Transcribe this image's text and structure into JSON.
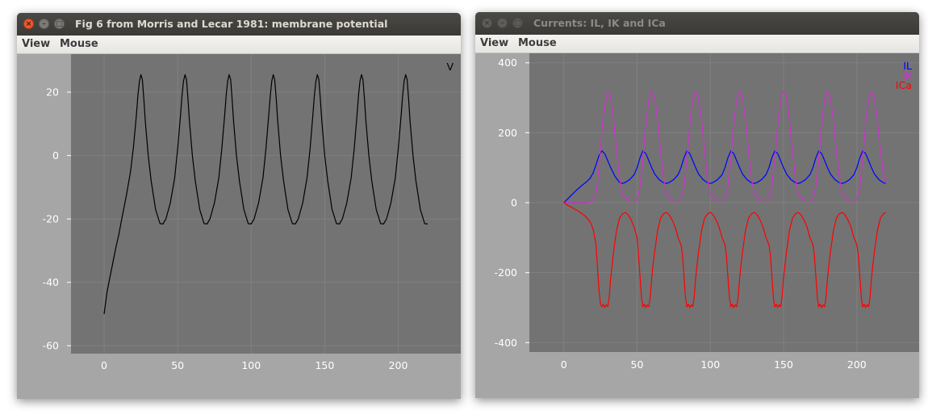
{
  "windows": [
    {
      "title": "Fig 6 from Morris and Lecar 1981: membrane potential",
      "menus": [
        "View",
        "Mouse"
      ]
    },
    {
      "title": "Currents: IL, IK and ICa",
      "menus": [
        "View",
        "Mouse"
      ]
    }
  ],
  "colors": {
    "plot_bg": "#737373",
    "outer_bg": "#a6a6a6",
    "grid": "#808080",
    "V": "#000000",
    "IL": "#0000ff",
    "IK": "#cc33cc",
    "ICa": "#ff0000"
  },
  "chart_data": [
    {
      "type": "line",
      "title": "",
      "xlabel": "",
      "ylabel": "",
      "xlim": [
        -22.5,
        242.5
      ],
      "ylim": [
        -62.5,
        32.0
      ],
      "xticks": [
        "0",
        "50",
        "100",
        "150",
        "200"
      ],
      "yticks": [
        "20",
        "0",
        "-20",
        "-40",
        "-60"
      ],
      "grid": true,
      "legend_position": "top-right",
      "series": [
        {
          "name": "V",
          "color": "#000000",
          "x": [
            0,
            2,
            5,
            8,
            10,
            12,
            15,
            18,
            20,
            22,
            23,
            24,
            25,
            26,
            27,
            28,
            30,
            32,
            35,
            38,
            40,
            42,
            45,
            48,
            50,
            52,
            53,
            54,
            55,
            56,
            57,
            58,
            60,
            62,
            65,
            68,
            70,
            72,
            75,
            78,
            80,
            82,
            83,
            84,
            85,
            86,
            87,
            88,
            90,
            92,
            95,
            98,
            100,
            102,
            105,
            108,
            110,
            112,
            113,
            114,
            115,
            116,
            117,
            118,
            120,
            122,
            125,
            128,
            130,
            132,
            135,
            138,
            140,
            142,
            143,
            144,
            145,
            146,
            147,
            148,
            150,
            152,
            155,
            158,
            160,
            162,
            165,
            168,
            170,
            172,
            173,
            174,
            175,
            176,
            177,
            178,
            180,
            182,
            185,
            188,
            190,
            192,
            195,
            198,
            200,
            202,
            203,
            204,
            205,
            206,
            207,
            208,
            210,
            212,
            215,
            218,
            220
          ],
          "y": [
            -50,
            -43,
            -36,
            -29,
            -25,
            -20,
            -13,
            -5,
            3,
            13,
            19,
            23.5,
            25.5,
            24,
            18,
            11,
            0,
            -8,
            -17,
            -21.5,
            -21.6,
            -20,
            -15,
            -7,
            2,
            13,
            19,
            23.5,
            25.5,
            24,
            18,
            11,
            0,
            -8,
            -17,
            -21.5,
            -21.6,
            -20,
            -15,
            -7,
            2,
            13,
            19,
            23.5,
            25.5,
            24,
            18,
            11,
            0,
            -8,
            -17,
            -21.5,
            -21.6,
            -20,
            -15,
            -7,
            2,
            13,
            19,
            23.5,
            25.5,
            24,
            18,
            11,
            0,
            -8,
            -17,
            -21.5,
            -21.6,
            -20,
            -15,
            -7,
            2,
            13,
            19,
            23.5,
            25.5,
            24,
            18,
            11,
            0,
            -8,
            -17,
            -21.5,
            -21.6,
            -20,
            -15,
            -7,
            2,
            13,
            19,
            23.5,
            25.5,
            24,
            18,
            11,
            0,
            -8,
            -17,
            -21.5,
            -21.6,
            -20,
            -15,
            -7,
            2,
            13,
            19,
            23.5,
            25.5,
            24,
            18,
            11,
            0,
            -8,
            -17,
            -21.5,
            -21.6
          ]
        }
      ]
    },
    {
      "type": "line",
      "title": "",
      "xlabel": "",
      "ylabel": "",
      "xlim": [
        -23.5,
        242.5
      ],
      "ylim": [
        -427,
        427
      ],
      "xticks": [
        "0",
        "50",
        "100",
        "150",
        "200"
      ],
      "yticks": [
        "400",
        "200",
        "0",
        "-200",
        "-400"
      ],
      "grid": true,
      "legend_position": "top-right",
      "series": [
        {
          "name": "IL",
          "color": "#0000ff",
          "x": [
            0,
            3,
            6,
            9,
            12,
            15,
            18,
            20,
            22,
            24,
            26,
            28,
            30,
            32,
            35,
            38,
            40,
            42,
            45,
            48,
            50,
            52,
            54,
            56,
            58,
            60,
            62,
            65,
            68,
            70,
            72,
            75,
            78,
            80,
            82,
            84,
            86,
            88,
            90,
            92,
            95,
            98,
            100,
            102,
            105,
            108,
            110,
            112,
            114,
            116,
            118,
            120,
            122,
            125,
            128,
            130,
            132,
            135,
            138,
            140,
            142,
            144,
            146,
            148,
            150,
            152,
            155,
            158,
            160,
            162,
            165,
            168,
            170,
            172,
            174,
            176,
            178,
            180,
            182,
            185,
            188,
            190,
            192,
            195,
            198,
            200,
            202,
            204,
            206,
            208,
            210,
            212,
            215,
            218,
            220
          ],
          "y": [
            0,
            12,
            25,
            37,
            48,
            58,
            70,
            85,
            108,
            135,
            148,
            140,
            120,
            100,
            75,
            58,
            55,
            58,
            66,
            80,
            100,
            128,
            148,
            140,
            120,
            100,
            82,
            66,
            57,
            55,
            58,
            66,
            80,
            100,
            128,
            148,
            140,
            120,
            100,
            82,
            66,
            57,
            55,
            58,
            66,
            80,
            100,
            128,
            148,
            140,
            120,
            100,
            82,
            66,
            57,
            55,
            58,
            66,
            80,
            100,
            128,
            148,
            140,
            120,
            100,
            82,
            66,
            57,
            55,
            58,
            66,
            80,
            100,
            128,
            148,
            140,
            120,
            100,
            82,
            66,
            57,
            55,
            58,
            66,
            80,
            100,
            128,
            148,
            140,
            120,
            100,
            82,
            66,
            57,
            55
          ]
        },
        {
          "name": "IK",
          "color": "#cc33cc",
          "x": [
            0,
            5,
            10,
            15,
            18,
            20,
            22,
            24,
            26,
            28,
            30,
            32,
            34,
            36,
            38,
            40,
            44,
            48,
            50,
            52,
            54,
            56,
            58,
            60,
            62,
            64,
            66,
            68,
            70,
            74,
            78,
            80,
            82,
            84,
            86,
            88,
            90,
            92,
            94,
            96,
            98,
            100,
            104,
            108,
            110,
            112,
            114,
            116,
            118,
            120,
            122,
            124,
            126,
            128,
            130,
            134,
            138,
            140,
            142,
            144,
            146,
            148,
            150,
            152,
            154,
            156,
            158,
            160,
            164,
            168,
            170,
            172,
            174,
            176,
            178,
            180,
            182,
            184,
            186,
            188,
            190,
            194,
            198,
            200,
            202,
            204,
            206,
            208,
            210,
            212,
            214,
            216,
            218,
            220
          ],
          "y": [
            0,
            0,
            0,
            0,
            2,
            8,
            28,
            95,
            205,
            285,
            318,
            300,
            235,
            150,
            72,
            25,
            5,
            3,
            10,
            45,
            125,
            225,
            295,
            318,
            300,
            235,
            150,
            72,
            25,
            5,
            3,
            10,
            45,
            125,
            225,
            295,
            318,
            300,
            235,
            150,
            72,
            25,
            5,
            3,
            10,
            45,
            125,
            225,
            295,
            318,
            300,
            235,
            150,
            72,
            25,
            5,
            3,
            10,
            45,
            125,
            225,
            295,
            318,
            300,
            235,
            150,
            72,
            25,
            5,
            3,
            10,
            45,
            125,
            225,
            295,
            318,
            300,
            235,
            150,
            72,
            25,
            5,
            3,
            10,
            45,
            125,
            225,
            295,
            318,
            300,
            235,
            150,
            90,
            55
          ]
        },
        {
          "name": "ICa",
          "color": "#ff0000",
          "x": [
            0,
            3,
            6,
            9,
            12,
            15,
            18,
            20,
            22,
            23,
            24,
            25,
            26,
            27,
            28,
            29,
            30,
            31,
            32,
            34,
            36,
            38,
            40,
            42,
            44,
            46,
            48,
            50,
            51,
            52,
            53,
            54,
            55,
            56,
            57,
            58,
            59,
            60,
            61,
            62,
            64,
            66,
            68,
            70,
            72,
            74,
            76,
            78,
            80,
            81,
            82,
            83,
            84,
            85,
            86,
            87,
            88,
            89,
            90,
            91,
            92,
            94,
            96,
            98,
            100,
            102,
            104,
            106,
            108,
            110,
            111,
            112,
            113,
            114,
            115,
            116,
            117,
            118,
            119,
            120,
            121,
            122,
            124,
            126,
            128,
            130,
            132,
            134,
            136,
            138,
            140,
            141,
            142,
            143,
            144,
            145,
            146,
            147,
            148,
            149,
            150,
            151,
            152,
            154,
            156,
            158,
            160,
            162,
            164,
            166,
            168,
            170,
            171,
            172,
            173,
            174,
            175,
            176,
            177,
            178,
            179,
            180,
            181,
            182,
            184,
            186,
            188,
            190,
            192,
            194,
            196,
            198,
            200,
            201,
            202,
            203,
            204,
            205,
            206,
            207,
            208,
            209,
            210,
            211,
            212,
            214,
            216,
            218,
            220
          ],
          "y": [
            0,
            -8,
            -15,
            -22,
            -30,
            -40,
            -55,
            -75,
            -120,
            -185,
            -250,
            -290,
            -298,
            -290,
            -300,
            -292,
            -297,
            -270,
            -215,
            -140,
            -80,
            -45,
            -32,
            -28,
            -35,
            -50,
            -70,
            -100,
            -150,
            -210,
            -270,
            -298,
            -290,
            -300,
            -292,
            -297,
            -270,
            -215,
            -175,
            -140,
            -80,
            -45,
            -32,
            -28,
            -35,
            -50,
            -70,
            -100,
            -120,
            -150,
            -210,
            -270,
            -298,
            -290,
            -300,
            -292,
            -297,
            -270,
            -215,
            -175,
            -140,
            -80,
            -45,
            -32,
            -28,
            -35,
            -50,
            -70,
            -100,
            -120,
            -150,
            -210,
            -270,
            -298,
            -290,
            -300,
            -292,
            -297,
            -270,
            -215,
            -175,
            -140,
            -80,
            -45,
            -32,
            -28,
            -35,
            -50,
            -70,
            -100,
            -120,
            -150,
            -210,
            -270,
            -298,
            -290,
            -300,
            -292,
            -297,
            -270,
            -215,
            -175,
            -140,
            -80,
            -45,
            -32,
            -28,
            -35,
            -50,
            -70,
            -100,
            -120,
            -150,
            -210,
            -270,
            -298,
            -290,
            -300,
            -292,
            -297,
            -270,
            -215,
            -175,
            -140,
            -80,
            -45,
            -32,
            -28,
            -35,
            -50,
            -70,
            -100,
            -120,
            -150,
            -210,
            -270,
            -298,
            -290,
            -300,
            -292,
            -297,
            -270,
            -215,
            -175,
            -140,
            -80,
            -45,
            -32,
            -28
          ]
        }
      ]
    }
  ]
}
